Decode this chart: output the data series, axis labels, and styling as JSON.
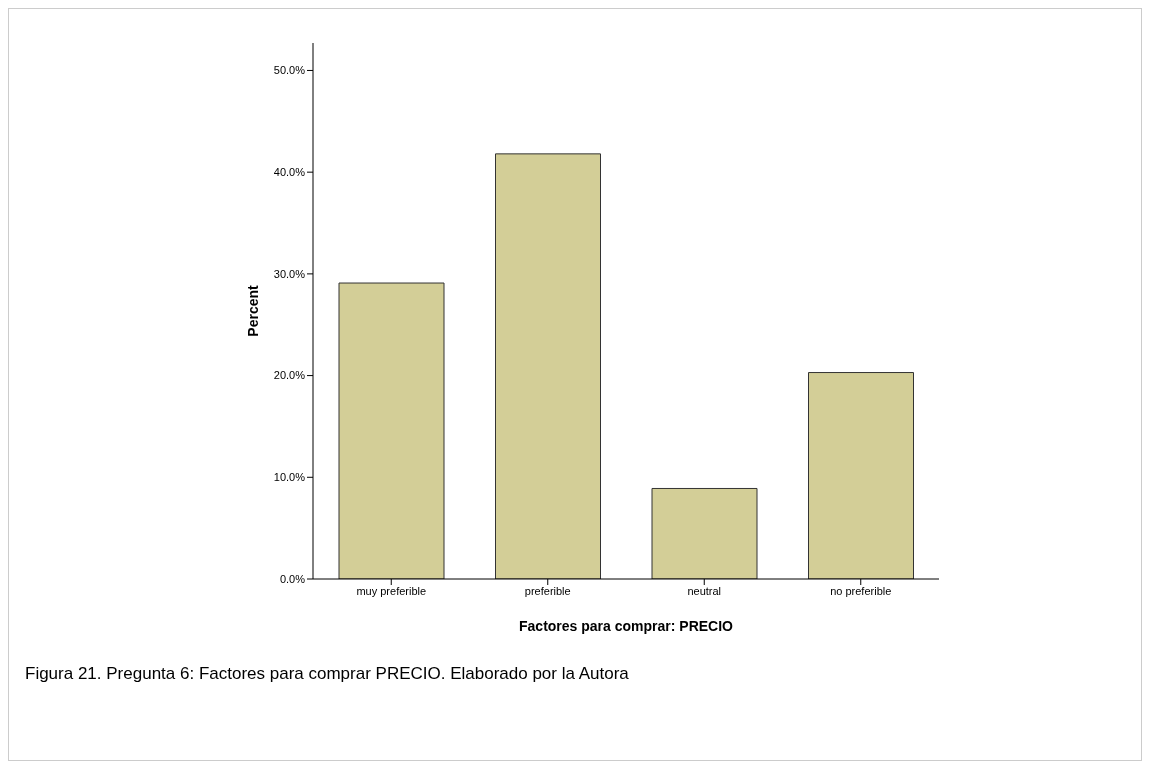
{
  "chart_data": {
    "type": "bar",
    "xlabel": "Factores para comprar: PRECIO",
    "ylabel": "Percent",
    "categories": [
      "muy preferible",
      "preferible",
      "neutral",
      "no preferible"
    ],
    "values": [
      29.1,
      41.8,
      8.9,
      20.3
    ],
    "color": "#d3ce97",
    "ylim": [
      0,
      52.7
    ],
    "yticks": [
      {
        "value": 0,
        "label": "0.0%"
      },
      {
        "value": 10,
        "label": "10.0%"
      },
      {
        "value": 20,
        "label": "20.0%"
      },
      {
        "value": 30,
        "label": "30.0%"
      },
      {
        "value": 40,
        "label": "40.0%"
      },
      {
        "value": 50,
        "label": "50.0%"
      }
    ],
    "grid": false,
    "annotations": [
      "Figura 21. Pregunta 6: Factores para comprar PRECIO. Elaborado por la Autora"
    ]
  }
}
